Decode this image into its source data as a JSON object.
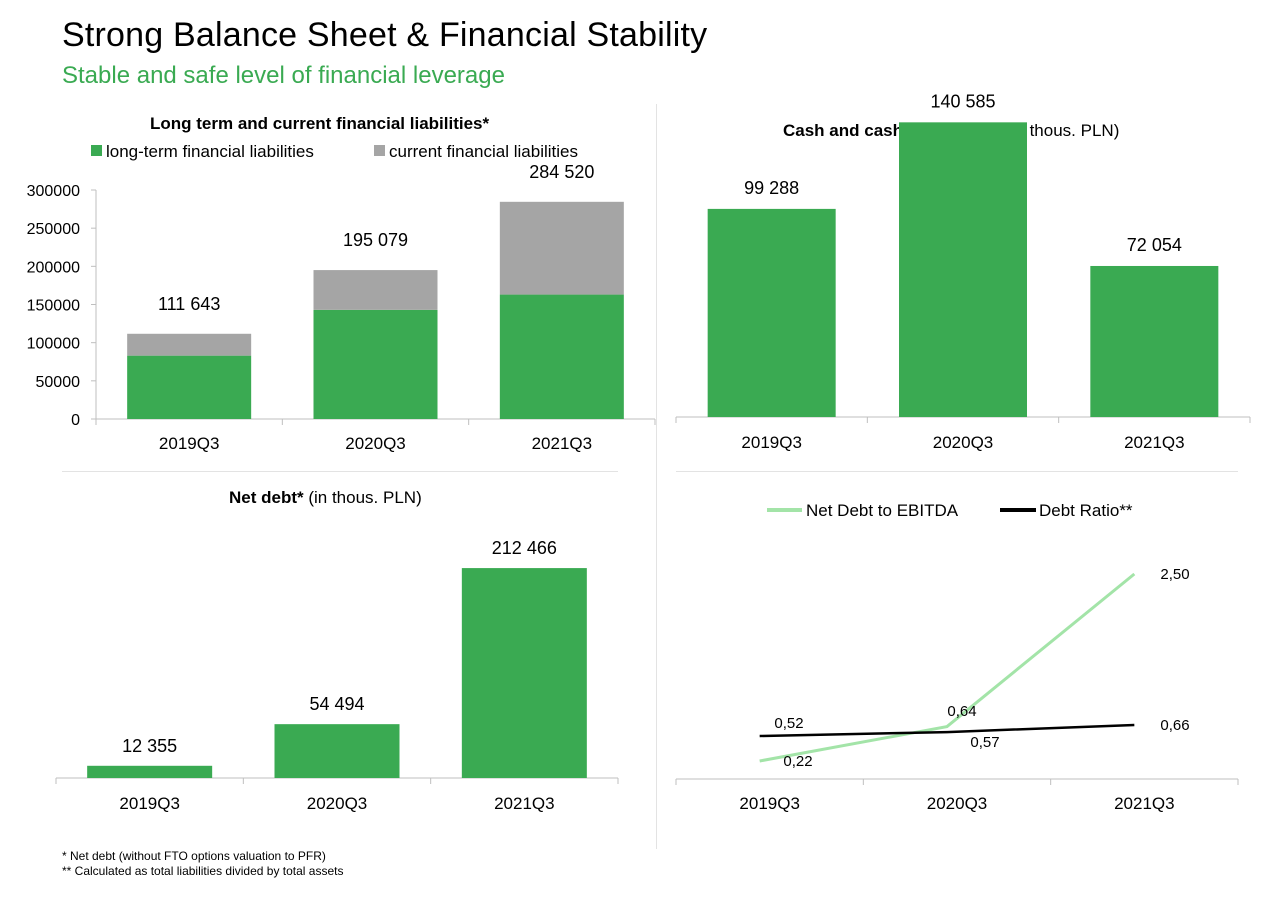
{
  "header": {
    "title": "Strong Balance Sheet & Financial Stability",
    "subtitle": "Stable and safe level of financial leverage"
  },
  "colors": {
    "green": "#3aaa52",
    "grey": "#a5a5a5",
    "light_green": "#a3e4a8",
    "black": "#000000"
  },
  "chart_data": [
    {
      "type": "bar",
      "stacked": true,
      "title_bold": "Long term and current financial liabilities",
      "title_mark": "*",
      "categories": [
        "2019Q3",
        "2020Q3",
        "2021Q3"
      ],
      "series": [
        {
          "name": "long-term financial liabilities",
          "values": [
            83000,
            143000,
            163000
          ]
        },
        {
          "name": "current financial liabilities",
          "values": [
            28643,
            52079,
            121520
          ]
        }
      ],
      "totals_labels": [
        "111 643",
        "195 079",
        "284 520"
      ],
      "yticks": [
        "0",
        "50000",
        "100000",
        "150000",
        "200000",
        "250000",
        "300000"
      ],
      "ylim": [
        0,
        300000
      ],
      "legend": "top"
    },
    {
      "type": "bar",
      "title_bold": "Cash and cash equivalents",
      "title_rest": " (in thous. PLN)",
      "categories": [
        "2019Q3",
        "2020Q3",
        "2021Q3"
      ],
      "values": [
        99288,
        140585,
        72054
      ],
      "labels": [
        "99 288",
        "140 585",
        "72 054"
      ]
    },
    {
      "type": "bar",
      "title_bold": "Net debt",
      "title_mark": "*",
      "title_rest": " (in thous. PLN)",
      "categories": [
        "2019Q3",
        "2020Q3",
        "2021Q3"
      ],
      "values": [
        12355,
        54494,
        212466
      ],
      "labels": [
        "12 355",
        "54 494",
        "212 466"
      ]
    },
    {
      "type": "line",
      "categories": [
        "2019Q3",
        "2020Q3",
        "2021Q3"
      ],
      "series": [
        {
          "name": "Net Debt to EBITDA",
          "values": [
            0.22,
            0.64,
            2.5
          ],
          "labels": [
            "0,22",
            "0,64",
            "2,50"
          ]
        },
        {
          "name": "Debt Ratio**",
          "values": [
            0.52,
            0.57,
            0.66
          ],
          "labels": [
            "0,52",
            "0,57",
            "0,66"
          ]
        }
      ],
      "legend": "top"
    }
  ],
  "footnotes": [
    "* Net debt (without FTO options valuation to PFR)",
    "** Calculated as total liabilities divided by total assets"
  ]
}
